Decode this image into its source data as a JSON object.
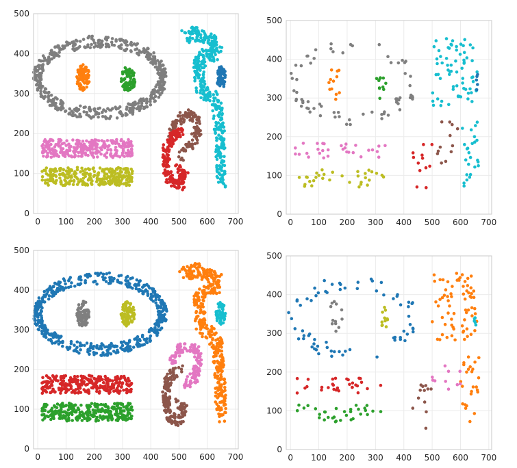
{
  "chart_data": [
    {
      "type": "scatter",
      "xlim": [
        -15,
        710
      ],
      "ylim": [
        0,
        500
      ],
      "xticks": [
        0,
        100,
        200,
        300,
        400,
        500,
        600,
        700
      ],
      "yticks": [
        0,
        100,
        200,
        300,
        400,
        500
      ],
      "grid": true,
      "colors": {
        "gray": "#7f7f7f",
        "orange": "#ff7f0e",
        "green": "#2ca02c",
        "cyan": "#17becf",
        "blue": "#1f77b4",
        "brown": "#8c564b",
        "red": "#d62728",
        "pink": "#e377c2",
        "olive": "#bcbd22"
      },
      "clusters": [
        {
          "shape": "ring",
          "cx": 220,
          "cy": 340,
          "rx": 222,
          "ry": 90,
          "w": 30,
          "n": 520,
          "color": "gray"
        },
        {
          "shape": "blob",
          "cx": 160,
          "cy": 340,
          "rx": 23,
          "ry": 33,
          "n": 90,
          "color": "orange"
        },
        {
          "shape": "blob",
          "cx": 320,
          "cy": 335,
          "rx": 25,
          "ry": 33,
          "n": 85,
          "color": "green"
        },
        {
          "shape": "poly",
          "pts": [
            [
              515,
              440
            ],
            [
              560,
              450
            ],
            [
              605,
              440
            ],
            [
              635,
              420
            ],
            [
              625,
              400
            ],
            [
              590,
              390
            ],
            [
              570,
              380
            ],
            [
              575,
              320
            ],
            [
              590,
              300
            ],
            [
              615,
              290
            ],
            [
              635,
              270
            ],
            [
              640,
              230
            ],
            [
              645,
              170
            ],
            [
              648,
              110
            ],
            [
              650,
              80
            ]
          ],
          "w": 18,
          "n": 420,
          "color": "cyan"
        },
        {
          "shape": "blob",
          "cx": 650,
          "cy": 340,
          "rx": 17,
          "ry": 30,
          "n": 60,
          "color": "blue"
        },
        {
          "shape": "poly",
          "pts": [
            [
              470,
              195
            ],
            [
              490,
              230
            ],
            [
              530,
              250
            ],
            [
              560,
              240
            ],
            [
              565,
              205
            ],
            [
              545,
              175
            ],
            [
              515,
              160
            ],
            [
              500,
              140
            ]
          ],
          "w": 13,
          "n": 140,
          "color": "brown"
        },
        {
          "shape": "poly",
          "pts": [
            [
              510,
              205
            ],
            [
              480,
              195
            ],
            [
              455,
              165
            ],
            [
              455,
              115
            ],
            [
              470,
              80
            ],
            [
              505,
              70
            ],
            [
              520,
              100
            ],
            [
              495,
              115
            ]
          ],
          "w": 13,
          "n": 200,
          "color": "red"
        },
        {
          "shape": "rect",
          "x0": 15,
          "x1": 335,
          "y0": 140,
          "y1": 185,
          "n": 300,
          "color": "pink"
        },
        {
          "shape": "rect",
          "x0": 15,
          "x1": 335,
          "y0": 70,
          "y1": 115,
          "n": 300,
          "color": "olive"
        }
      ]
    },
    {
      "type": "scatter",
      "xlim": [
        -15,
        710
      ],
      "ylim": [
        0,
        500
      ],
      "xticks": [
        0,
        100,
        200,
        300,
        400,
        500,
        600,
        700
      ],
      "yticks": [
        0,
        100,
        200,
        300,
        400,
        500
      ],
      "grid": true,
      "colors": {
        "gray": "#7f7f7f",
        "orange": "#ff7f0e",
        "green": "#2ca02c",
        "cyan": "#17becf",
        "blue": "#1f77b4",
        "brown": "#8c564b",
        "red": "#d62728",
        "pink": "#e377c2",
        "olive": "#bcbd22"
      },
      "clusters": [
        {
          "shape": "ring",
          "cx": 220,
          "cy": 340,
          "rx": 210,
          "ry": 90,
          "w": 40,
          "n": 70,
          "color": "gray"
        },
        {
          "shape": "blob",
          "cx": 160,
          "cy": 340,
          "rx": 25,
          "ry": 45,
          "n": 12,
          "color": "orange"
        },
        {
          "shape": "blob",
          "cx": 320,
          "cy": 335,
          "rx": 20,
          "ry": 40,
          "n": 11,
          "color": "green"
        },
        {
          "shape": "rect",
          "x0": 500,
          "x1": 660,
          "y0": 280,
          "y1": 455,
          "n": 70,
          "color": "cyan"
        },
        {
          "shape": "rect",
          "x0": 600,
          "x1": 665,
          "y0": 70,
          "y1": 240,
          "n": 25,
          "color": "cyan"
        },
        {
          "shape": "blob",
          "cx": 655,
          "cy": 345,
          "rx": 8,
          "ry": 25,
          "n": 5,
          "color": "blue"
        },
        {
          "shape": "rect",
          "x0": 500,
          "x1": 600,
          "y0": 130,
          "y1": 250,
          "n": 12,
          "color": "brown"
        },
        {
          "shape": "rect",
          "x0": 430,
          "x1": 500,
          "y0": 50,
          "y1": 180,
          "n": 12,
          "color": "red"
        },
        {
          "shape": "rect",
          "x0": 15,
          "x1": 335,
          "y0": 145,
          "y1": 185,
          "n": 30,
          "color": "pink"
        },
        {
          "shape": "rect",
          "x0": 15,
          "x1": 335,
          "y0": 70,
          "y1": 115,
          "n": 32,
          "color": "olive"
        }
      ]
    },
    {
      "type": "scatter",
      "xlim": [
        -15,
        710
      ],
      "ylim": [
        0,
        500
      ],
      "xticks": [
        0,
        100,
        200,
        300,
        400,
        500,
        600,
        700
      ],
      "yticks": [
        0,
        100,
        200,
        300,
        400,
        500
      ],
      "grid": true,
      "colors": {
        "gray": "#7f7f7f",
        "orange": "#ff7f0e",
        "green": "#2ca02c",
        "cyan": "#17becf",
        "blue": "#1f77b4",
        "brown": "#8c564b",
        "red": "#d62728",
        "pink": "#e377c2",
        "olive": "#bcbd22"
      },
      "clusters": [
        {
          "shape": "ring",
          "cx": 220,
          "cy": 340,
          "rx": 222,
          "ry": 90,
          "w": 30,
          "n": 520,
          "color": "blue"
        },
        {
          "shape": "blob",
          "cx": 160,
          "cy": 340,
          "rx": 23,
          "ry": 33,
          "n": 90,
          "color": "gray"
        },
        {
          "shape": "blob",
          "cx": 320,
          "cy": 340,
          "rx": 25,
          "ry": 33,
          "n": 85,
          "color": "olive"
        },
        {
          "shape": "poly",
          "pts": [
            [
              515,
              440
            ],
            [
              560,
              450
            ],
            [
              605,
              440
            ],
            [
              635,
              420
            ],
            [
              625,
              400
            ],
            [
              590,
              390
            ],
            [
              570,
              380
            ],
            [
              575,
              320
            ],
            [
              590,
              300
            ],
            [
              615,
              290
            ],
            [
              635,
              270
            ],
            [
              640,
              230
            ],
            [
              645,
              170
            ],
            [
              648,
              110
            ],
            [
              650,
              80
            ]
          ],
          "w": 18,
          "n": 420,
          "color": "orange"
        },
        {
          "shape": "blob",
          "cx": 648,
          "cy": 340,
          "rx": 17,
          "ry": 30,
          "n": 60,
          "color": "cyan"
        },
        {
          "shape": "poly",
          "pts": [
            [
              475,
              215
            ],
            [
              495,
              245
            ],
            [
              530,
              260
            ],
            [
              565,
              245
            ],
            [
              570,
              210
            ],
            [
              550,
              175
            ],
            [
              520,
              160
            ]
          ],
          "w": 13,
          "n": 140,
          "color": "pink"
        },
        {
          "shape": "poly",
          "pts": [
            [
              505,
              200
            ],
            [
              475,
              190
            ],
            [
              455,
              160
            ],
            [
              455,
              115
            ],
            [
              470,
              80
            ],
            [
              505,
              70
            ],
            [
              520,
              100
            ],
            [
              495,
              115
            ]
          ],
          "w": 13,
          "n": 200,
          "color": "brown"
        },
        {
          "shape": "rect",
          "x0": 15,
          "x1": 335,
          "y0": 140,
          "y1": 185,
          "n": 300,
          "color": "red"
        },
        {
          "shape": "rect",
          "x0": 15,
          "x1": 335,
          "y0": 70,
          "y1": 115,
          "n": 300,
          "color": "green"
        }
      ]
    },
    {
      "type": "scatter",
      "xlim": [
        -15,
        710
      ],
      "ylim": [
        0,
        500
      ],
      "xticks": [
        0,
        100,
        200,
        300,
        400,
        500,
        600,
        700
      ],
      "yticks": [
        0,
        100,
        200,
        300,
        400,
        500
      ],
      "grid": true,
      "colors": {
        "gray": "#7f7f7f",
        "orange": "#ff7f0e",
        "green": "#2ca02c",
        "cyan": "#17becf",
        "blue": "#1f77b4",
        "brown": "#8c564b",
        "red": "#d62728",
        "pink": "#e377c2",
        "olive": "#bcbd22"
      },
      "clusters": [
        {
          "shape": "ring",
          "cx": 220,
          "cy": 340,
          "rx": 210,
          "ry": 90,
          "w": 40,
          "n": 70,
          "color": "blue"
        },
        {
          "shape": "blob",
          "cx": 160,
          "cy": 340,
          "rx": 25,
          "ry": 45,
          "n": 12,
          "color": "gray"
        },
        {
          "shape": "blob",
          "cx": 325,
          "cy": 335,
          "rx": 20,
          "ry": 40,
          "n": 11,
          "color": "olive"
        },
        {
          "shape": "rect",
          "x0": 500,
          "x1": 660,
          "y0": 280,
          "y1": 455,
          "n": 70,
          "color": "orange"
        },
        {
          "shape": "rect",
          "x0": 600,
          "x1": 665,
          "y0": 70,
          "y1": 240,
          "n": 25,
          "color": "orange"
        },
        {
          "shape": "blob",
          "cx": 655,
          "cy": 345,
          "rx": 8,
          "ry": 25,
          "n": 5,
          "color": "cyan"
        },
        {
          "shape": "rect",
          "x0": 500,
          "x1": 600,
          "y0": 150,
          "y1": 230,
          "n": 10,
          "color": "pink"
        },
        {
          "shape": "rect",
          "x0": 430,
          "x1": 500,
          "y0": 50,
          "y1": 180,
          "n": 12,
          "color": "brown"
        },
        {
          "shape": "rect",
          "x0": 15,
          "x1": 335,
          "y0": 145,
          "y1": 185,
          "n": 30,
          "color": "red"
        },
        {
          "shape": "rect",
          "x0": 15,
          "x1": 335,
          "y0": 70,
          "y1": 115,
          "n": 32,
          "color": "green"
        }
      ]
    }
  ]
}
